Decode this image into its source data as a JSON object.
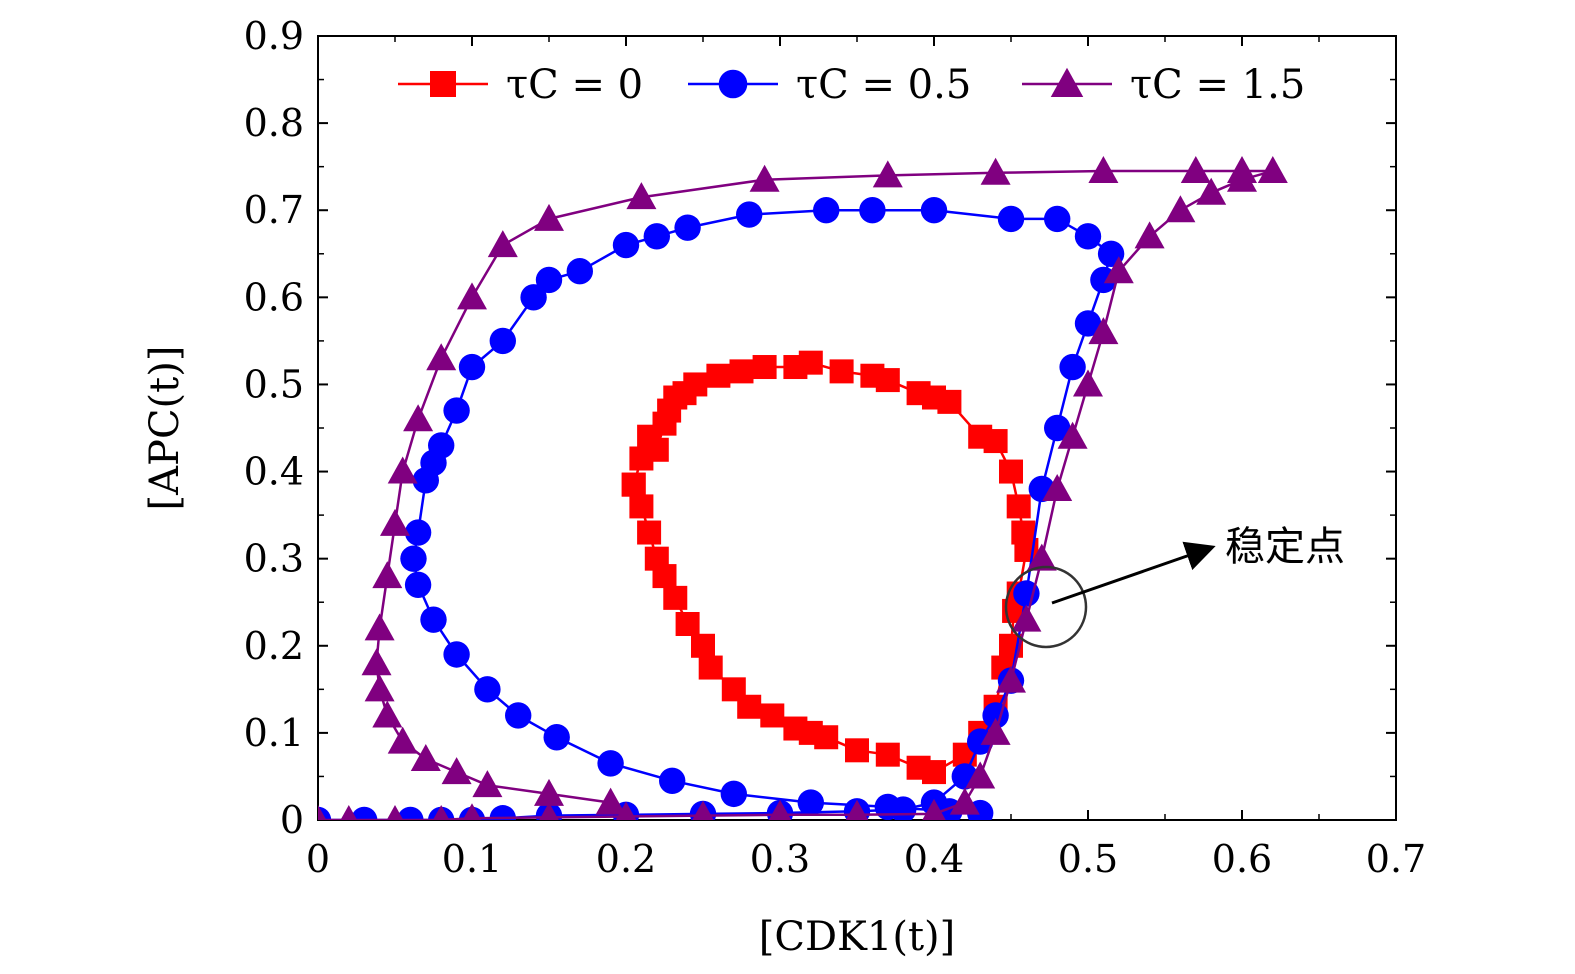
{
  "chart_data": {
    "type": "line",
    "xlabel": "[CDK1(t)]",
    "ylabel": "[APC(t)]",
    "xlim": [
      0,
      0.7
    ],
    "ylim": [
      0,
      0.9
    ],
    "xticks": [
      "0",
      "0.1",
      "0.2",
      "0.3",
      "0.4",
      "0.5",
      "0.6",
      "0.7"
    ],
    "yticks": [
      "0",
      "0.1",
      "0.2",
      "0.3",
      "0.4",
      "0.5",
      "0.6",
      "0.7",
      "0.8",
      "0.9"
    ],
    "grid": false,
    "legend_position": "top",
    "annotation": {
      "text": "稳定点",
      "point": [
        0.47,
        0.245
      ]
    },
    "series": [
      {
        "name": "τC = 0",
        "color": "#ff0000",
        "marker": "square",
        "x": [
          0.205,
          0.21,
          0.215,
          0.22,
          0.225,
          0.228,
          0.232,
          0.238,
          0.245,
          0.26,
          0.275,
          0.29,
          0.31,
          0.32,
          0.34,
          0.36,
          0.37,
          0.39,
          0.4,
          0.41,
          0.43,
          0.44,
          0.45,
          0.455,
          0.458,
          0.46,
          0.455,
          0.452,
          0.45,
          0.445,
          0.44,
          0.43,
          0.42,
          0.4,
          0.39,
          0.37,
          0.35,
          0.33,
          0.32,
          0.31,
          0.295,
          0.28,
          0.27,
          0.255,
          0.25,
          0.24,
          0.232,
          0.225,
          0.22,
          0.215,
          0.21,
          0.205
        ],
        "y": [
          0.385,
          0.415,
          0.44,
          0.425,
          0.455,
          0.47,
          0.485,
          0.49,
          0.5,
          0.51,
          0.515,
          0.52,
          0.52,
          0.525,
          0.515,
          0.51,
          0.505,
          0.49,
          0.485,
          0.48,
          0.44,
          0.435,
          0.4,
          0.36,
          0.33,
          0.31,
          0.26,
          0.24,
          0.2,
          0.175,
          0.13,
          0.1,
          0.075,
          0.055,
          0.06,
          0.075,
          0.08,
          0.095,
          0.1,
          0.105,
          0.12,
          0.13,
          0.15,
          0.175,
          0.2,
          0.225,
          0.255,
          0.28,
          0.3,
          0.33,
          0.36,
          0.385
        ]
      },
      {
        "name": "τC = 0.5",
        "color": "#0000ff",
        "marker": "circle",
        "x": [
          0.0,
          0.03,
          0.06,
          0.08,
          0.1,
          0.12,
          0.15,
          0.2,
          0.25,
          0.3,
          0.35,
          0.38,
          0.4,
          0.42,
          0.43,
          0.44,
          0.45,
          0.46,
          0.47,
          0.48,
          0.49,
          0.5,
          0.51,
          0.515,
          0.5,
          0.48,
          0.45,
          0.4,
          0.36,
          0.33,
          0.28,
          0.24,
          0.22,
          0.2,
          0.17,
          0.15,
          0.14,
          0.12,
          0.1,
          0.09,
          0.08,
          0.075,
          0.07,
          0.065,
          0.062,
          0.065,
          0.075,
          0.09,
          0.11,
          0.13,
          0.155,
          0.19,
          0.23,
          0.27,
          0.32,
          0.37,
          0.41,
          0.43
        ],
        "y": [
          0.0,
          0.0,
          0.0,
          0.0,
          0.0,
          0.002,
          0.005,
          0.006,
          0.007,
          0.008,
          0.01,
          0.012,
          0.02,
          0.05,
          0.09,
          0.12,
          0.16,
          0.26,
          0.38,
          0.45,
          0.52,
          0.57,
          0.62,
          0.65,
          0.67,
          0.69,
          0.69,
          0.7,
          0.7,
          0.7,
          0.695,
          0.68,
          0.67,
          0.66,
          0.63,
          0.62,
          0.6,
          0.55,
          0.52,
          0.47,
          0.43,
          0.41,
          0.39,
          0.33,
          0.3,
          0.27,
          0.23,
          0.19,
          0.15,
          0.12,
          0.095,
          0.065,
          0.045,
          0.03,
          0.02,
          0.015,
          0.01,
          0.008
        ]
      },
      {
        "name": "τC = 1.5",
        "color": "#800080",
        "marker": "triangle",
        "x": [
          0.0,
          0.02,
          0.05,
          0.08,
          0.1,
          0.15,
          0.2,
          0.25,
          0.3,
          0.35,
          0.4,
          0.42,
          0.43,
          0.44,
          0.45,
          0.46,
          0.47,
          0.48,
          0.49,
          0.5,
          0.51,
          0.52,
          0.54,
          0.56,
          0.58,
          0.6,
          0.62,
          0.6,
          0.57,
          0.51,
          0.44,
          0.37,
          0.29,
          0.21,
          0.15,
          0.12,
          0.1,
          0.08,
          0.065,
          0.055,
          0.05,
          0.045,
          0.04,
          0.038,
          0.04,
          0.045,
          0.055,
          0.07,
          0.09,
          0.11,
          0.15,
          0.19
        ],
        "y": [
          0.0,
          0.0,
          0.0,
          0.0,
          0.002,
          0.003,
          0.004,
          0.005,
          0.006,
          0.006,
          0.007,
          0.02,
          0.05,
          0.1,
          0.16,
          0.23,
          0.3,
          0.38,
          0.44,
          0.5,
          0.56,
          0.63,
          0.67,
          0.7,
          0.72,
          0.735,
          0.745,
          0.745,
          0.745,
          0.745,
          0.743,
          0.74,
          0.735,
          0.715,
          0.69,
          0.66,
          0.6,
          0.53,
          0.46,
          0.4,
          0.34,
          0.28,
          0.22,
          0.18,
          0.15,
          0.12,
          0.09,
          0.07,
          0.055,
          0.04,
          0.03,
          0.02
        ]
      }
    ]
  }
}
